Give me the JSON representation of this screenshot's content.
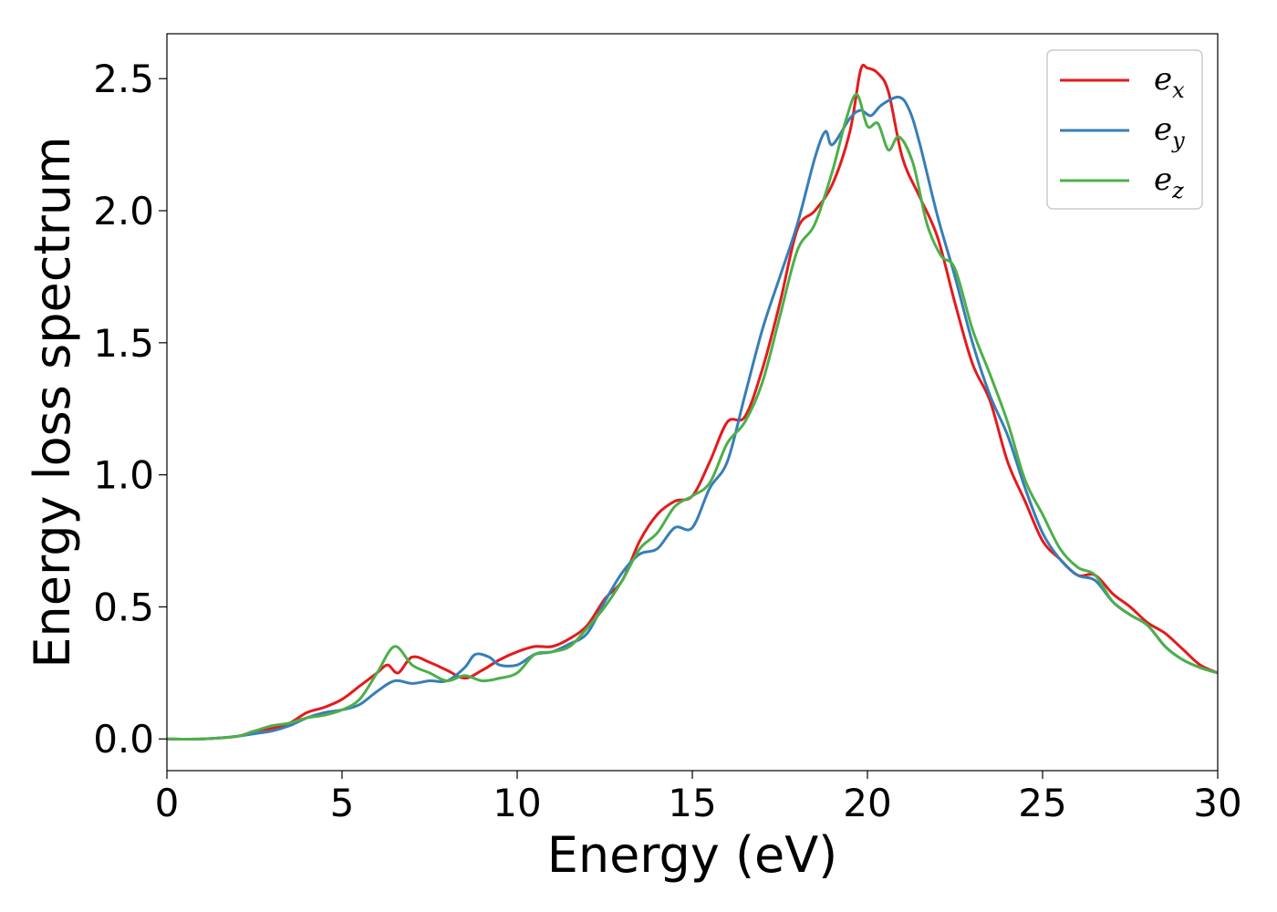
{
  "chart_data": {
    "type": "line",
    "title": "",
    "xlabel": "Energy (eV)",
    "ylabel": "Energy loss spectrum",
    "xlim": [
      0,
      30
    ],
    "ylim": [
      -0.12,
      2.67
    ],
    "xticks": [
      0,
      5,
      10,
      15,
      20,
      25,
      30
    ],
    "xtick_labels": [
      "0",
      "5",
      "10",
      "15",
      "20",
      "25",
      "30"
    ],
    "yticks": [
      0.0,
      0.5,
      1.0,
      1.5,
      2.0,
      2.5
    ],
    "ytick_labels": [
      "0.0",
      "0.5",
      "1.0",
      "1.5",
      "2.0",
      "2.5"
    ],
    "grid": false,
    "legend_position": "top-right",
    "series": [
      {
        "name": "e_x",
        "legend_base": "e",
        "legend_sub": "x",
        "color": "#e41a1c",
        "x": [
          0,
          1,
          2,
          2.5,
          3,
          3.5,
          4,
          4.5,
          5,
          5.5,
          6,
          6.3,
          6.6,
          7,
          7.5,
          8,
          8.5,
          9,
          9.5,
          10,
          10.5,
          11,
          11.5,
          12,
          12.5,
          13,
          13.5,
          14,
          14.5,
          15,
          15.5,
          16,
          16.5,
          17,
          17.5,
          18,
          18.5,
          19,
          19.5,
          19.8,
          20,
          20.3,
          20.6,
          21,
          21.5,
          22,
          22.5,
          23,
          23.5,
          24,
          24.5,
          25,
          25.5,
          26,
          26.5,
          27,
          27.5,
          28,
          28.5,
          29,
          29.5,
          30
        ],
        "y": [
          0,
          0,
          0.01,
          0.03,
          0.04,
          0.06,
          0.1,
          0.12,
          0.15,
          0.2,
          0.25,
          0.28,
          0.25,
          0.31,
          0.29,
          0.26,
          0.23,
          0.26,
          0.3,
          0.33,
          0.35,
          0.35,
          0.38,
          0.43,
          0.53,
          0.6,
          0.75,
          0.85,
          0.9,
          0.92,
          1.05,
          1.2,
          1.22,
          1.4,
          1.65,
          1.93,
          2.0,
          2.1,
          2.3,
          2.53,
          2.54,
          2.52,
          2.45,
          2.2,
          2.05,
          1.9,
          1.65,
          1.42,
          1.28,
          1.05,
          0.9,
          0.75,
          0.68,
          0.62,
          0.62,
          0.55,
          0.5,
          0.44,
          0.4,
          0.34,
          0.28,
          0.25
        ]
      },
      {
        "name": "e_y",
        "legend_base": "e",
        "legend_sub": "y",
        "color": "#377eb8",
        "x": [
          0,
          1,
          2,
          2.5,
          3,
          3.5,
          4,
          4.5,
          5,
          5.5,
          6,
          6.5,
          7,
          7.5,
          8,
          8.5,
          8.8,
          9.2,
          9.5,
          10,
          10.5,
          11,
          11.5,
          12,
          12.5,
          13,
          13.5,
          14,
          14.5,
          15,
          15.5,
          16,
          16.5,
          17,
          17.5,
          18,
          18.5,
          18.8,
          19,
          19.5,
          19.8,
          20.1,
          20.4,
          20.9,
          21.2,
          21.5,
          22,
          22.5,
          23,
          23.5,
          24,
          24.5,
          25,
          25.5,
          26,
          26.5,
          27,
          27.5,
          28,
          28.5,
          29,
          29.5,
          30
        ],
        "y": [
          0,
          0,
          0.01,
          0.02,
          0.03,
          0.05,
          0.08,
          0.1,
          0.11,
          0.13,
          0.18,
          0.22,
          0.21,
          0.22,
          0.22,
          0.27,
          0.32,
          0.31,
          0.28,
          0.28,
          0.32,
          0.33,
          0.36,
          0.4,
          0.52,
          0.63,
          0.7,
          0.72,
          0.8,
          0.8,
          0.95,
          1.05,
          1.3,
          1.55,
          1.75,
          1.95,
          2.2,
          2.3,
          2.25,
          2.35,
          2.38,
          2.36,
          2.4,
          2.43,
          2.38,
          2.25,
          1.98,
          1.75,
          1.5,
          1.3,
          1.15,
          0.95,
          0.78,
          0.68,
          0.62,
          0.6,
          0.52,
          0.47,
          0.43,
          0.35,
          0.3,
          0.27,
          0.25
        ]
      },
      {
        "name": "e_z",
        "legend_base": "e",
        "legend_sub": "z",
        "color": "#4daf4a",
        "x": [
          0,
          1,
          2,
          2.5,
          3,
          3.5,
          4,
          4.5,
          5,
          5.5,
          6,
          6.5,
          7,
          7.5,
          8,
          8.5,
          9,
          9.5,
          10,
          10.5,
          11,
          11.5,
          12,
          12.5,
          13,
          13.5,
          14,
          14.5,
          15,
          15.5,
          16,
          16.5,
          17,
          17.5,
          18,
          18.5,
          19,
          19.4,
          19.7,
          20,
          20.3,
          20.6,
          20.9,
          21.3,
          21.7,
          22.1,
          22.5,
          23,
          23.5,
          24,
          24.5,
          25,
          25.5,
          26,
          26.5,
          27,
          27.5,
          28,
          28.5,
          29,
          29.5,
          30
        ],
        "y": [
          0,
          0,
          0.01,
          0.03,
          0.05,
          0.06,
          0.08,
          0.09,
          0.11,
          0.15,
          0.25,
          0.35,
          0.28,
          0.25,
          0.22,
          0.24,
          0.22,
          0.23,
          0.25,
          0.32,
          0.33,
          0.35,
          0.42,
          0.5,
          0.6,
          0.72,
          0.78,
          0.88,
          0.92,
          0.97,
          1.12,
          1.2,
          1.35,
          1.6,
          1.85,
          1.95,
          2.15,
          2.35,
          2.44,
          2.32,
          2.33,
          2.23,
          2.28,
          2.18,
          1.95,
          1.83,
          1.78,
          1.55,
          1.38,
          1.2,
          0.98,
          0.85,
          0.72,
          0.65,
          0.62,
          0.52,
          0.47,
          0.43,
          0.35,
          0.3,
          0.27,
          0.25
        ]
      }
    ]
  }
}
